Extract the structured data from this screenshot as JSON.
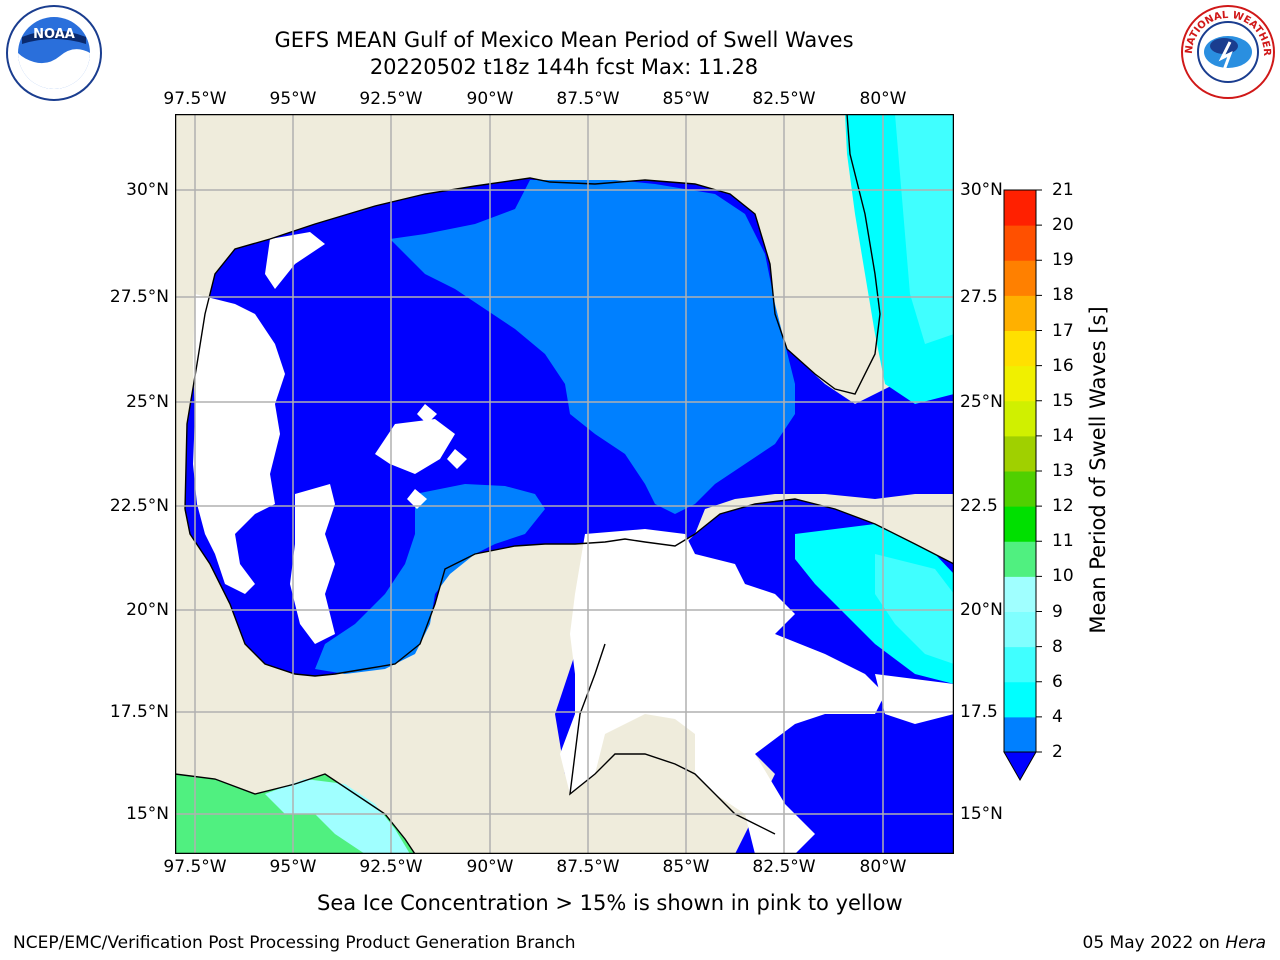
{
  "title": {
    "line1": "GEFS MEAN Gulf of Mexico Mean Period of Swell Waves",
    "line2": "20220502 t18z 144h fcst   Max: 11.28"
  },
  "map": {
    "lon_labels": [
      "97.5°W",
      "95°W",
      "92.5°W",
      "90°W",
      "87.5°W",
      "85°W",
      "82.5°W",
      "80°W"
    ],
    "lat_labels_left": [
      "30°N",
      "27.5°N",
      "25°N",
      "22.5°N",
      "20°N",
      "17.5°N",
      "15°N"
    ],
    "lat_labels_right": [
      "30°N",
      "27.5",
      "25°N",
      "22.5",
      "20°N",
      "17.5",
      "15°N"
    ],
    "colors": {
      "land": "#efecdc",
      "sea_blue": "#0000ff",
      "light_blue": "#0080ff",
      "cyan": "#00ffff",
      "aqua": "#40ffff",
      "pale_cyan": "#a0ffff",
      "green": "#50f080",
      "grid": "#b0b0b0"
    }
  },
  "colorbar": {
    "label": "Mean Period of Swell Waves [s]",
    "ticks": [
      "2",
      "4",
      "6",
      "8",
      "9",
      "10",
      "11",
      "12",
      "13",
      "14",
      "15",
      "16",
      "17",
      "18",
      "19",
      "20",
      "21"
    ],
    "colors": [
      "#0080ff",
      "#00ffff",
      "#40ffff",
      "#80ffff",
      "#a0ffff",
      "#50f080",
      "#00e000",
      "#50d000",
      "#a0d000",
      "#d0f000",
      "#f0f000",
      "#ffe000",
      "#ffb000",
      "#ff8000",
      "#ff5000",
      "#ff2000"
    ],
    "under_color": "#0000ff"
  },
  "notes": {
    "sea_ice": "Sea Ice Concentration > 15% is shown in pink to yellow"
  },
  "footer": {
    "left": "NCEP/EMC/Verification Post Processing Product Generation Branch",
    "right_date": "05 May 2022 on ",
    "right_machine": "Hera"
  },
  "logos": {
    "noaa_text": "NOAA",
    "nws_text": "NATIONAL WEATHER SERVICE"
  }
}
